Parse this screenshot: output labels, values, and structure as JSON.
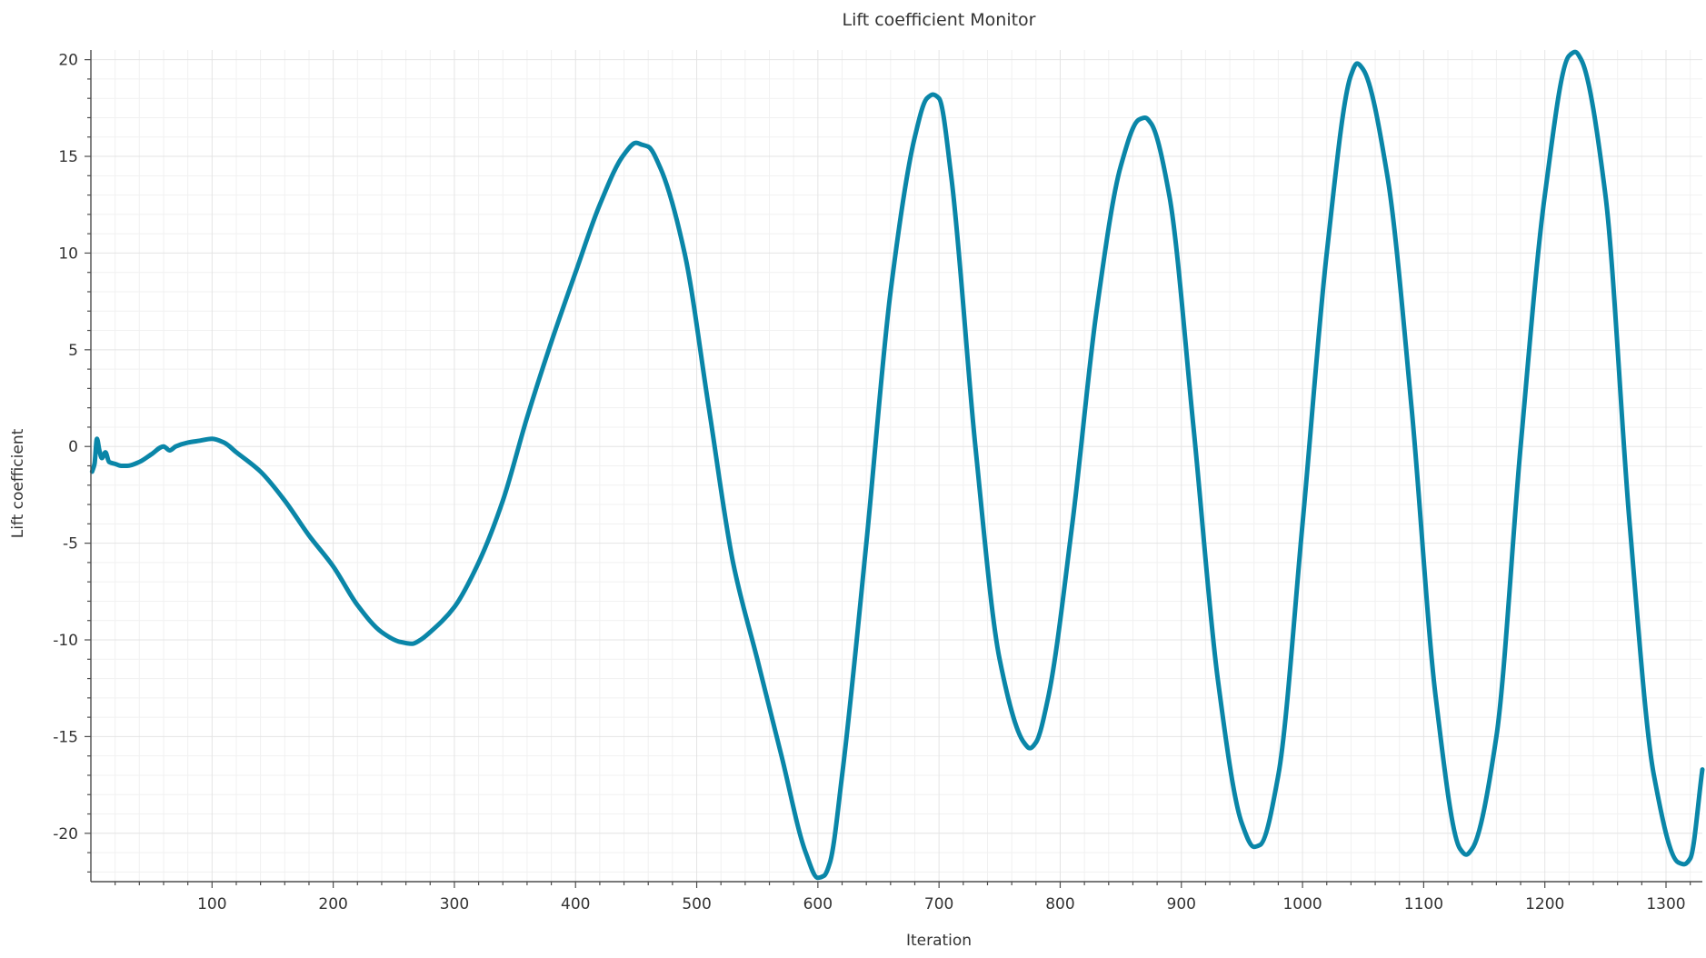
{
  "chart_data": {
    "type": "line",
    "title": "Lift coefficient Monitor",
    "xlabel": "Iteration",
    "ylabel": "Lift coefficient",
    "xlim": [
      0,
      1330
    ],
    "ylim": [
      -22.5,
      20.5
    ],
    "x_ticks": [
      100,
      200,
      300,
      400,
      500,
      600,
      700,
      800,
      900,
      1000,
      1100,
      1200,
      1300
    ],
    "y_ticks": [
      -20,
      -15,
      -10,
      -5,
      0,
      5,
      10,
      15,
      20
    ],
    "x_tick_labels": [
      "100",
      "200",
      "300",
      "400",
      "500",
      "600",
      "700",
      "800",
      "900",
      "1000",
      "1100",
      "1200",
      "1300"
    ],
    "y_tick_labels": [
      "-20",
      "-15",
      "-10",
      "-5",
      "0",
      "5",
      "10",
      "15",
      "20"
    ],
    "grid": true,
    "legend": "none",
    "series": [
      {
        "color": "#0a86a8",
        "x": [
          1,
          3,
          5,
          7,
          9,
          12,
          15,
          20,
          25,
          30,
          40,
          50,
          60,
          65,
          70,
          80,
          90,
          100,
          110,
          120,
          140,
          160,
          180,
          200,
          220,
          240,
          255,
          265,
          272,
          280,
          300,
          320,
          340,
          360,
          380,
          400,
          420,
          440,
          450,
          455,
          460,
          470,
          490,
          510,
          530,
          550,
          570,
          590,
          600,
          605,
          610,
          620,
          640,
          660,
          680,
          690,
          695,
          700,
          710,
          730,
          750,
          770,
          775,
          780,
          790,
          810,
          830,
          850,
          865,
          870,
          875,
          890,
          910,
          930,
          950,
          960,
          965,
          980,
          1000,
          1020,
          1040,
          1045,
          1050,
          1070,
          1090,
          1110,
          1130,
          1135,
          1140,
          1160,
          1180,
          1200,
          1220,
          1225,
          1230,
          1250,
          1270,
          1290,
          1310,
          1315,
          1320,
          1330
        ],
        "y": [
          -1.3,
          -0.9,
          0.4,
          -0.2,
          -0.6,
          -0.3,
          -0.8,
          -0.9,
          -1.0,
          -1.0,
          -0.8,
          -0.4,
          0.0,
          -0.2,
          0.0,
          0.2,
          0.3,
          0.4,
          0.2,
          -0.3,
          -1.3,
          -2.8,
          -4.6,
          -6.2,
          -8.2,
          -9.6,
          -10.1,
          -10.2,
          -10.0,
          -9.6,
          -8.3,
          -6.0,
          -2.8,
          1.5,
          5.4,
          9.0,
          12.5,
          15.1,
          15.7,
          15.6,
          15.5,
          14.4,
          10.0,
          2.0,
          -6.0,
          -11.0,
          -16.0,
          -21.0,
          -22.3,
          -22.2,
          -21.5,
          -17.0,
          -5.0,
          8.0,
          16.0,
          18.0,
          18.2,
          18.0,
          14.0,
          0.0,
          -11.0,
          -15.3,
          -15.6,
          -15.3,
          -13.0,
          -4.0,
          7.0,
          14.5,
          16.9,
          17.0,
          16.7,
          13.0,
          1.0,
          -12.0,
          -19.5,
          -20.7,
          -20.6,
          -17.0,
          -4.0,
          10.0,
          19.2,
          19.8,
          19.5,
          14.0,
          2.0,
          -13.0,
          -20.8,
          -21.1,
          -20.8,
          -15.0,
          0.0,
          13.0,
          20.2,
          20.4,
          20.0,
          13.0,
          -4.0,
          -17.0,
          -21.5,
          -21.6,
          -21.3,
          -16.7
        ]
      }
    ]
  }
}
